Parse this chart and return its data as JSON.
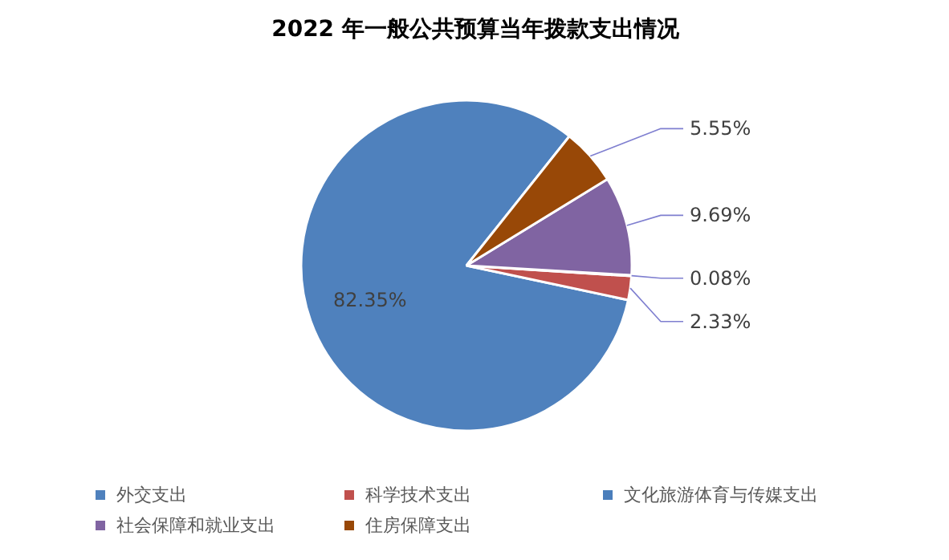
{
  "chart_data": {
    "type": "pie",
    "title": "2022 年一般公共预算当年拨款支出情况",
    "categories": [
      "外交支出",
      "科学技术支出",
      "文化旅游体育与传媒支出",
      "社会保障和就业支出",
      "住房保障支出"
    ],
    "values": [
      82.35,
      2.33,
      0.08,
      9.69,
      5.55
    ],
    "colors": [
      "#4f81bd",
      "#c0504d",
      "#4a7ebb",
      "#8064a2",
      "#984807"
    ],
    "value_labels": [
      "82.35%",
      "2.33%",
      "0.08%",
      "9.69%",
      "5.55%"
    ],
    "legend": "bottom"
  }
}
